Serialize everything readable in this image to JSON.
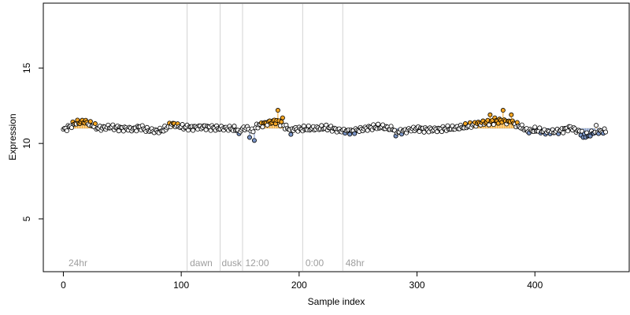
{
  "chart_data": {
    "type": "scatter",
    "title": "",
    "xlabel": "Sample index",
    "ylabel": "Expression",
    "xlim": [
      -17,
      480
    ],
    "ylim": [
      1.5,
      19.3
    ],
    "xticks": [
      0,
      100,
      200,
      300,
      400
    ],
    "yticks": [
      5,
      10,
      15
    ],
    "grid": false,
    "baseline": 11.0,
    "region_lines": [
      105,
      133,
      152,
      203,
      237
    ],
    "region_labels": [
      {
        "x": 3,
        "label": "24hr"
      },
      {
        "x": 106,
        "label": "dawn"
      },
      {
        "x": 133,
        "label": "dusk"
      },
      {
        "x": 153,
        "label": "12:00"
      },
      {
        "x": 204,
        "label": "0:00"
      },
      {
        "x": 238,
        "label": "48hr"
      }
    ],
    "colors": {
      "up": "#f5a623",
      "down": "#7b96c8",
      "neutral": "#ffffff",
      "point_edge": "#000000",
      "region_line": "#d3d3d3",
      "region_text": "#9e9e9e"
    },
    "n_points": 461,
    "profile_knots": [
      [
        0,
        10.9
      ],
      [
        5,
        11.1
      ],
      [
        10,
        11.35
      ],
      [
        18,
        11.45
      ],
      [
        25,
        11.2
      ],
      [
        30,
        11.0
      ],
      [
        40,
        11.1
      ],
      [
        50,
        11.0
      ],
      [
        60,
        10.95
      ],
      [
        65,
        11.1
      ],
      [
        70,
        10.9
      ],
      [
        80,
        10.8
      ],
      [
        85,
        10.9
      ],
      [
        92,
        11.3
      ],
      [
        100,
        11.1
      ],
      [
        110,
        11.05
      ],
      [
        120,
        11.1
      ],
      [
        130,
        11.0
      ],
      [
        140,
        11.0
      ],
      [
        150,
        10.9
      ],
      [
        155,
        11.05
      ],
      [
        160,
        10.8
      ],
      [
        165,
        11.2
      ],
      [
        175,
        11.4
      ],
      [
        182,
        11.5
      ],
      [
        190,
        11.0
      ],
      [
        200,
        10.95
      ],
      [
        215,
        11.0
      ],
      [
        225,
        11.05
      ],
      [
        235,
        10.85
      ],
      [
        245,
        10.8
      ],
      [
        260,
        11.05
      ],
      [
        270,
        11.1
      ],
      [
        280,
        10.95
      ],
      [
        285,
        10.75
      ],
      [
        290,
        10.85
      ],
      [
        300,
        11.0
      ],
      [
        310,
        10.9
      ],
      [
        320,
        10.95
      ],
      [
        330,
        11.0
      ],
      [
        340,
        11.1
      ],
      [
        350,
        11.3
      ],
      [
        360,
        11.4
      ],
      [
        370,
        11.5
      ],
      [
        380,
        11.4
      ],
      [
        388,
        11.1
      ],
      [
        395,
        10.8
      ],
      [
        400,
        10.9
      ],
      [
        410,
        10.75
      ],
      [
        420,
        10.8
      ],
      [
        430,
        11.05
      ],
      [
        440,
        10.7
      ],
      [
        445,
        10.5
      ],
      [
        450,
        10.75
      ],
      [
        460,
        10.8
      ]
    ],
    "outliers": [
      [
        149,
        10.65
      ],
      [
        158,
        10.4
      ],
      [
        162,
        10.2
      ],
      [
        182,
        12.2
      ],
      [
        186,
        11.7
      ],
      [
        193,
        10.6
      ],
      [
        282,
        10.5
      ],
      [
        362,
        11.9
      ],
      [
        366,
        11.7
      ],
      [
        373,
        12.2
      ],
      [
        380,
        11.9
      ],
      [
        441,
        10.4
      ],
      [
        452,
        11.2
      ]
    ]
  }
}
